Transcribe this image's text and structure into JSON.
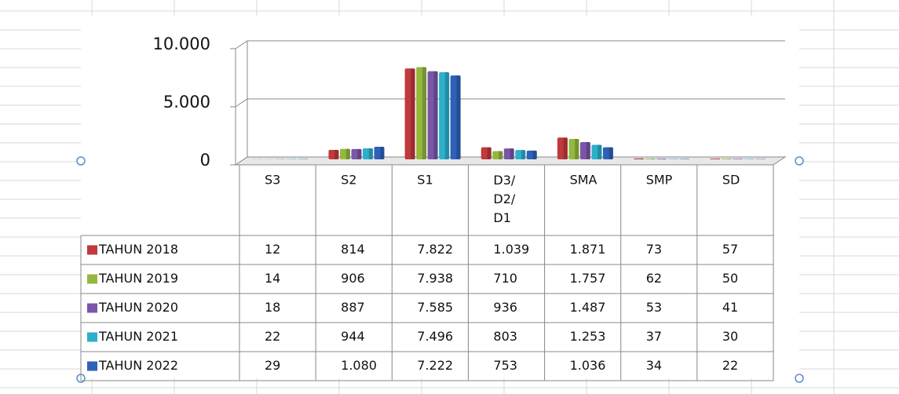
{
  "chart_data": {
    "type": "bar",
    "categories": [
      "S3",
      "S2",
      "S1",
      "D3/ D2/ D1",
      "SMA",
      "SMP",
      "SD"
    ],
    "series": [
      {
        "name": "TAHUN 2018",
        "color": "#c0393b",
        "values": [
          12,
          814,
          7822,
          1039,
          1871,
          73,
          57
        ],
        "value_labels": [
          "12",
          "814",
          "7.822",
          "1.039",
          "1.871",
          "73",
          "57"
        ]
      },
      {
        "name": "TAHUN 2019",
        "color": "#94b83e",
        "values": [
          14,
          906,
          7938,
          710,
          1757,
          62,
          50
        ],
        "value_labels": [
          "14",
          "906",
          "7.938",
          "710",
          "1.757",
          "62",
          "50"
        ]
      },
      {
        "name": "TAHUN 2020",
        "color": "#7a56a8",
        "values": [
          18,
          887,
          7585,
          936,
          1487,
          53,
          41
        ],
        "value_labels": [
          "18",
          "887",
          "7.585",
          "936",
          "1.487",
          "53",
          "41"
        ]
      },
      {
        "name": "TAHUN 2021",
        "color": "#2cb0cc",
        "values": [
          22,
          944,
          7496,
          803,
          1253,
          37,
          30
        ],
        "value_labels": [
          "22",
          "944",
          "7.496",
          "803",
          "1.253",
          "37",
          "30"
        ]
      },
      {
        "name": "TAHUN 2022",
        "color": "#2e62b8",
        "values": [
          29,
          1080,
          7222,
          753,
          1036,
          34,
          22
        ],
        "value_labels": [
          "29",
          "1.080",
          "7.222",
          "753",
          "1.036",
          "34",
          "22"
        ]
      }
    ],
    "ylim": [
      0,
      10000
    ],
    "yticks": [
      0,
      {
        "value": 5000,
        "label": "5.000"
      },
      {
        "value": 10000,
        "label": "10.000"
      }
    ],
    "grid": true
  }
}
